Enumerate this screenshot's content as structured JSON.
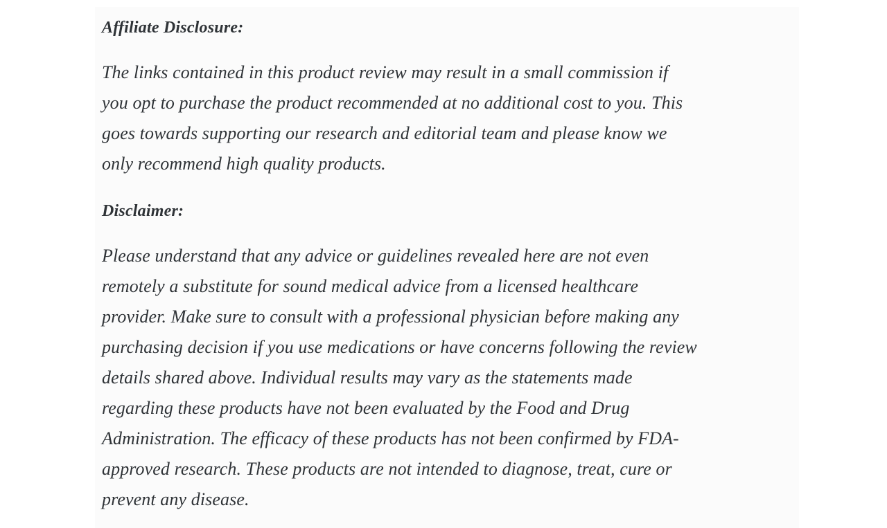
{
  "page": {
    "background_color": "#ffffff",
    "content_background_color": "#fbfbfb",
    "text_color": "#2f3337"
  },
  "article": {
    "affiliate_heading": "Affiliate Disclosure:",
    "affiliate_paragraph": "The links contained in this product review may result in a small commission if\nyou opt to purchase the product recommended at no additional cost to you. This\ngoes towards supporting our research and editorial team and please know we\nonly recommend high quality products.",
    "disclaimer_heading": "Disclaimer:",
    "disclaimer_paragraph": "Please understand that any advice or guidelines revealed here are not even\nremotely a substitute for sound medical advice from a licensed healthcare\nprovider. Make sure to consult with a professional physician before making any\npurchasing decision if you use medications or have concerns following the review\ndetails shared above. Individual results may vary as the statements made\nregarding these products have not been evaluated by the Food and Drug\nAdministration. The efficacy of these products has not been confirmed by FDA-\napproved research. These products are not intended to diagnose, treat, cure or\nprevent any disease."
  }
}
